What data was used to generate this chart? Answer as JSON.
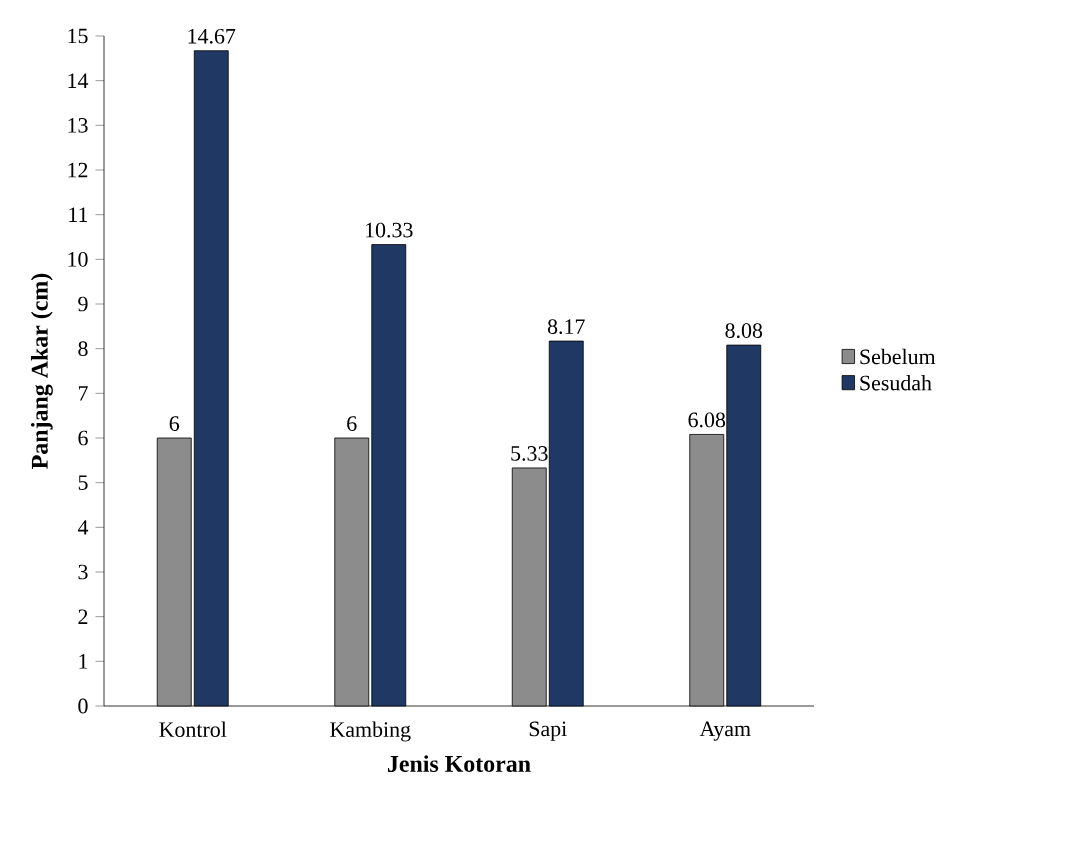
{
  "chart_data": {
    "type": "bar",
    "xlabel": "Jenis Kotoran",
    "ylabel": "Panjang Akar (cm)",
    "categories": [
      "Kontrol",
      "Kambing",
      "Sapi",
      "Ayam"
    ],
    "series": [
      {
        "name": "Sebelum",
        "color": "#8c8c8c",
        "values": [
          6,
          6,
          5.33,
          6.08
        ]
      },
      {
        "name": "Sesudah",
        "color": "#1f3864",
        "values": [
          14.67,
          10.33,
          8.17,
          8.08
        ]
      }
    ],
    "ylim": [
      0,
      15
    ],
    "yticks": [
      0,
      1,
      2,
      3,
      4,
      5,
      6,
      7,
      8,
      9,
      10,
      11,
      12,
      13,
      14,
      15
    ],
    "data_labels": true,
    "legend": "right",
    "grid": false
  }
}
